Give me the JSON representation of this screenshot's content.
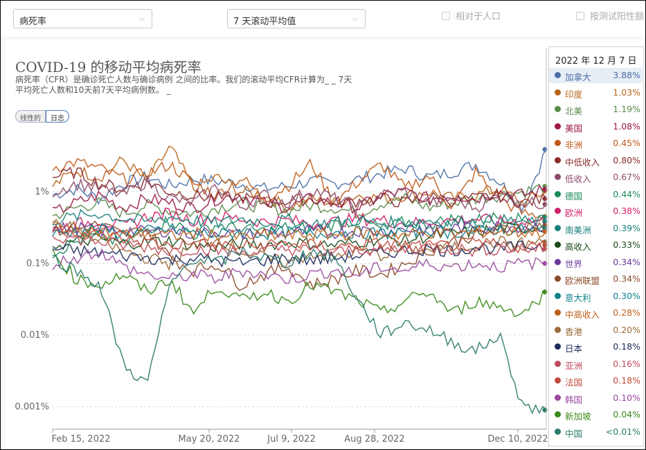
{
  "controls": {
    "metric_select": "病死率",
    "interval_select": "7 天滚动平均值",
    "per_capita_label": "相对于人口",
    "test_positive_label": "按测试阳性额"
  },
  "title": "COVID-19 的移动平均病死率",
  "subtitle": "病死率（CFR）是确诊死亡人数与确诊病例 之间的比率。我们的滚动平均CFR计算为_ _ 7天 平均死亡人数和10天前7天平均病例数。 _",
  "scale_toggle": {
    "linear": "线性的",
    "log": "日志"
  },
  "tooltip": {
    "date": "2022 年 12 月 7 日",
    "rows": [
      {
        "name": "加拿大",
        "value": "3.88%",
        "color": "#4a6fa5"
      },
      {
        "name": "印度",
        "value": "1.03%",
        "color": "#b8651b"
      },
      {
        "name": "北美",
        "value": "1.19%",
        "color": "#5a8a4a"
      },
      {
        "name": "美国",
        "value": "1.08%",
        "color": "#9c1848"
      },
      {
        "name": "非洲",
        "value": "0.45%",
        "color": "#c05a1a"
      },
      {
        "name": "中低收入",
        "value": "0.80%",
        "color": "#8a2a2a"
      },
      {
        "name": "低收入",
        "value": "0.67%",
        "color": "#8c4a6a"
      },
      {
        "name": "德国",
        "value": "0.44%",
        "color": "#1a8a5a"
      },
      {
        "name": "欧洲",
        "value": "0.38%",
        "color": "#d0206a"
      },
      {
        "name": "南美洲",
        "value": "0.39%",
        "color": "#18807a"
      },
      {
        "name": "高收入",
        "value": "0.33%",
        "color": "#1a4a1a"
      },
      {
        "name": "世界",
        "value": "0.34%",
        "color": "#6a3a9a"
      },
      {
        "name": "欧洲联盟",
        "value": "0.34%",
        "color": "#8a4a2a"
      },
      {
        "name": "意大利",
        "value": "0.30%",
        "color": "#10808a"
      },
      {
        "name": "中高收入",
        "value": "0.28%",
        "color": "#c0601a"
      },
      {
        "name": "香港",
        "value": "0.20%",
        "color": "#9a6a3a"
      },
      {
        "name": "日本",
        "value": "0.18%",
        "color": "#1a2a5a"
      },
      {
        "name": "亚洲",
        "value": "0.16%",
        "color": "#c04a5a"
      },
      {
        "name": "法国",
        "value": "0.18%",
        "color": "#c04a3a"
      },
      {
        "name": "韩国",
        "value": "0.10%",
        "color": "#9a4aa0"
      },
      {
        "name": "新加坡",
        "value": "0.04%",
        "color": "#3a8a1a"
      },
      {
        "name": "中国",
        "value": "<0.01%",
        "color": "#2a7a6a"
      }
    ]
  },
  "chart_data": {
    "type": "line",
    "yscale": "log",
    "y_ticks": [
      "1%",
      "0.1%",
      "0.01%",
      "0.001%"
    ],
    "x_ticks": [
      "Feb 15, 2022",
      "May 20, 2022",
      "Jul 9, 2022",
      "Aug 28, 2022",
      "Dec 10, 2022"
    ],
    "ylim": [
      "0.0007%",
      "5%"
    ],
    "series": [
      {
        "name": "加拿大",
        "color": "#4a6fa5",
        "values": [
          0.9,
          1.1,
          0.8,
          1.3,
          1.6,
          1.2,
          1.5,
          1.4,
          1.3,
          1.1,
          1.2,
          1.4,
          1.3,
          1.5,
          1.8,
          2.1,
          1.6,
          1.9,
          2.4,
          1.4,
          0.6,
          3.9
        ]
      },
      {
        "name": "印度",
        "color": "#b8651b",
        "values": [
          1.2,
          2.0,
          1.6,
          2.8,
          1.4,
          4.2,
          1.1,
          1.6,
          1.0,
          0.9,
          0.6,
          0.8,
          0.7,
          0.9,
          0.8,
          0.9,
          1.0,
          0.8,
          0.9,
          1.1,
          0.7,
          1.03
        ]
      },
      {
        "name": "北美",
        "color": "#5a8a4a",
        "values": [
          0.45,
          0.6,
          0.7,
          0.5,
          0.65,
          0.55,
          0.5,
          0.6,
          0.7,
          0.6,
          0.55,
          0.65,
          0.6,
          0.5,
          0.7,
          0.8,
          0.6,
          0.7,
          0.8,
          0.9,
          1.0,
          1.19
        ]
      },
      {
        "name": "美国",
        "color": "#9c1848",
        "values": [
          0.5,
          0.7,
          0.9,
          0.6,
          0.8,
          0.7,
          0.6,
          0.8,
          0.9,
          0.7,
          0.6,
          0.8,
          0.7,
          0.6,
          0.9,
          1.0,
          0.8,
          0.9,
          0.8,
          1.0,
          0.9,
          1.08
        ]
      },
      {
        "name": "非洲",
        "color": "#c05a1a",
        "values": [
          2.2,
          2.6,
          2.1,
          1.5,
          1.8,
          2.4,
          1.3,
          0.9,
          1.6,
          0.8,
          1.2,
          2.5,
          0.7,
          1.4,
          2.4,
          1.1,
          1.7,
          0.6,
          1.9,
          0.8,
          0.5,
          0.45
        ]
      },
      {
        "name": "中低收入",
        "color": "#8a2a2a",
        "values": [
          1.6,
          1.9,
          1.3,
          1.1,
          1.4,
          1.0,
          0.9,
          0.8,
          0.85,
          0.7,
          0.75,
          0.8,
          0.7,
          0.75,
          0.8,
          0.7,
          0.85,
          0.75,
          0.8,
          0.9,
          0.7,
          0.8
        ]
      },
      {
        "name": "低收入",
        "color": "#8c4a6a",
        "values": [
          1.0,
          1.3,
          1.1,
          0.9,
          1.4,
          0.8,
          0.7,
          1.2,
          0.6,
          0.9,
          0.7,
          1.1,
          0.8,
          0.6,
          0.9,
          1.0,
          0.7,
          0.8,
          0.6,
          0.9,
          0.7,
          0.67
        ]
      },
      {
        "name": "德国",
        "color": "#1a8a5a",
        "values": [
          0.14,
          0.2,
          0.25,
          0.18,
          0.3,
          0.4,
          0.25,
          0.35,
          0.3,
          0.28,
          0.32,
          0.3,
          0.35,
          0.4,
          0.3,
          0.38,
          0.35,
          0.42,
          0.4,
          0.45,
          0.4,
          0.44
        ]
      },
      {
        "name": "欧洲",
        "color": "#d0206a",
        "values": [
          0.3,
          0.35,
          0.4,
          0.32,
          0.45,
          0.5,
          0.4,
          0.45,
          0.42,
          0.38,
          0.4,
          0.36,
          0.38,
          0.42,
          0.4,
          0.36,
          0.38,
          0.4,
          0.42,
          0.38,
          0.4,
          0.38
        ]
      },
      {
        "name": "南美洲",
        "color": "#18807a",
        "values": [
          0.4,
          0.45,
          0.5,
          0.42,
          0.38,
          0.45,
          0.4,
          0.36,
          0.42,
          0.38,
          0.4,
          0.35,
          0.38,
          0.4,
          0.36,
          0.38,
          0.4,
          0.37,
          0.38,
          0.4,
          0.38,
          0.39
        ]
      },
      {
        "name": "高收入",
        "color": "#1a4a1a",
        "values": [
          0.18,
          0.2,
          0.22,
          0.19,
          0.2,
          0.21,
          0.18,
          0.17,
          0.19,
          0.18,
          0.2,
          0.19,
          0.18,
          0.2,
          0.22,
          0.21,
          0.24,
          0.26,
          0.28,
          0.3,
          0.31,
          0.33
        ]
      },
      {
        "name": "世界",
        "color": "#6a3a9a",
        "values": [
          0.3,
          0.32,
          0.28,
          0.3,
          0.27,
          0.29,
          0.26,
          0.28,
          0.25,
          0.27,
          0.26,
          0.28,
          0.27,
          0.29,
          0.28,
          0.3,
          0.29,
          0.31,
          0.32,
          0.33,
          0.33,
          0.34
        ]
      },
      {
        "name": "欧洲联盟",
        "color": "#8a4a2a",
        "values": [
          0.28,
          0.3,
          0.35,
          0.25,
          0.3,
          0.12,
          0.08,
          0.1,
          0.05,
          0.07,
          0.09,
          0.05,
          0.06,
          0.08,
          0.07,
          0.1,
          0.15,
          0.2,
          0.25,
          0.3,
          0.32,
          0.34
        ]
      },
      {
        "name": "意大利",
        "color": "#10808a",
        "values": [
          0.25,
          0.28,
          0.3,
          0.26,
          0.28,
          0.3,
          0.27,
          0.25,
          0.28,
          0.26,
          0.27,
          0.25,
          0.28,
          0.27,
          0.26,
          0.28,
          0.29,
          0.27,
          0.28,
          0.3,
          0.29,
          0.3
        ]
      },
      {
        "name": "中高收入",
        "color": "#c0601a",
        "values": [
          0.35,
          0.3,
          0.28,
          0.25,
          0.27,
          0.24,
          0.26,
          0.25,
          0.23,
          0.25,
          0.24,
          0.26,
          0.25,
          0.27,
          0.26,
          0.25,
          0.27,
          0.26,
          0.27,
          0.28,
          0.27,
          0.28
        ]
      },
      {
        "name": "香港",
        "color": "#9a6a3a",
        "values": [
          0.35,
          0.3,
          0.2,
          0.15,
          0.12,
          0.1,
          0.18,
          0.22,
          0.15,
          0.12,
          0.1,
          0.14,
          0.12,
          0.15,
          0.13,
          0.16,
          0.15,
          0.17,
          0.18,
          0.2,
          0.19,
          0.2
        ]
      },
      {
        "name": "日本",
        "color": "#1a2a5a",
        "values": [
          0.16,
          0.15,
          0.14,
          0.13,
          0.12,
          0.11,
          0.12,
          0.11,
          0.1,
          0.11,
          0.12,
          0.11,
          0.12,
          0.13,
          0.14,
          0.15,
          0.16,
          0.15,
          0.17,
          0.16,
          0.17,
          0.18
        ]
      },
      {
        "name": "亚洲",
        "color": "#c04a5a",
        "values": [
          0.25,
          0.22,
          0.2,
          0.18,
          0.17,
          0.15,
          0.16,
          0.15,
          0.14,
          0.15,
          0.16,
          0.15,
          0.14,
          0.16,
          0.15,
          0.16,
          0.17,
          0.16,
          0.15,
          0.16,
          0.16,
          0.16
        ]
      },
      {
        "name": "法国",
        "color": "#c04a3a",
        "values": [
          0.3,
          0.28,
          0.25,
          0.22,
          0.2,
          0.18,
          0.19,
          0.18,
          0.17,
          0.18,
          0.19,
          0.18,
          0.17,
          0.18,
          0.19,
          0.18,
          0.17,
          0.18,
          0.19,
          0.18,
          0.17,
          0.18
        ]
      },
      {
        "name": "韩国",
        "color": "#9a4aa0",
        "values": [
          0.1,
          0.12,
          0.15,
          0.09,
          0.07,
          0.06,
          0.07,
          0.06,
          0.08,
          0.07,
          0.06,
          0.07,
          0.08,
          0.07,
          0.09,
          0.08,
          0.1,
          0.09,
          0.1,
          0.09,
          0.1,
          0.1
        ]
      },
      {
        "name": "新加坡",
        "color": "#3a8a1a",
        "values": [
          0.15,
          0.06,
          0.05,
          0.07,
          0.04,
          0.06,
          0.02,
          0.05,
          0.03,
          0.04,
          0.03,
          0.05,
          0.04,
          0.03,
          0.02,
          0.03,
          0.04,
          0.02,
          0.03,
          0.025,
          0.02,
          0.04
        ]
      },
      {
        "name": "中国",
        "color": "#2a7a6a",
        "values": [
          0.12,
          0.08,
          0.05,
          0.004,
          0.002,
          0.05,
          0.12,
          0.1,
          0.15,
          0.12,
          0.1,
          0.15,
          0.12,
          0.03,
          0.01,
          0.015,
          0.012,
          0.008,
          0.006,
          0.01,
          0.001,
          0.0009
        ]
      }
    ]
  }
}
